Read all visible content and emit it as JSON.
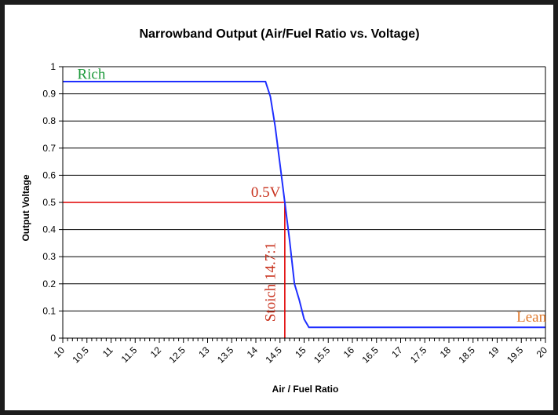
{
  "chart_data": {
    "type": "line",
    "title": "Narrowband Output (Air/Fuel Ratio vs. Voltage)",
    "xlabel": "Air / Fuel Ratio",
    "ylabel": "Output Voltage",
    "xlim": [
      10,
      20
    ],
    "ylim": [
      0,
      1
    ],
    "x_ticks": [
      10,
      10.5,
      11,
      11.5,
      12,
      12.5,
      13,
      13.5,
      14,
      14.5,
      15,
      15.5,
      16,
      16.5,
      17,
      17.5,
      18,
      18.5,
      19,
      19.5,
      20
    ],
    "x_tick_labels": [
      "10",
      "10.5",
      "11",
      "11.5",
      "12",
      "12.5",
      "13",
      "13.5",
      "14",
      "14.5",
      "15",
      "15.5",
      "16",
      "16.5",
      "17",
      "17.5",
      "18",
      "18.5",
      "19",
      "19.5",
      "20"
    ],
    "y_ticks": [
      0,
      0.1,
      0.2,
      0.3,
      0.4,
      0.5,
      0.6,
      0.7,
      0.8,
      0.9,
      1
    ],
    "y_tick_labels": [
      "0",
      "0.1",
      "0.2",
      "0.3",
      "0.4",
      "0.5",
      "0.6",
      "0.7",
      "0.8",
      "0.9",
      "1"
    ],
    "grid": "horizontal",
    "series": [
      {
        "name": "Narrowband output",
        "color": "#1f2fff",
        "x": [
          10,
          14.2,
          14.3,
          14.4,
          14.5,
          14.6,
          14.7,
          14.8,
          14.9,
          15.0,
          15.1,
          15.2,
          20
        ],
        "y": [
          0.945,
          0.945,
          0.89,
          0.78,
          0.64,
          0.5,
          0.36,
          0.2,
          0.14,
          0.07,
          0.04,
          0.04,
          0.04
        ]
      }
    ],
    "reference_lines": {
      "color": "#e00000",
      "horizontal": {
        "y": 0.5,
        "x_from": 10,
        "x_to": 14.6
      },
      "vertical": {
        "x": 14.6,
        "y_from": 0,
        "y_to": 0.5
      }
    },
    "annotations": [
      {
        "text": "Rich",
        "x": 10.3,
        "y": 0.955,
        "color": "#1e9a3c"
      },
      {
        "text": "0.5V",
        "x": 13.9,
        "y": 0.52,
        "color": "#c8321e"
      },
      {
        "text": "Stoich 14.7:1",
        "x": 14.4,
        "y": 0.06,
        "color": "#c8321e",
        "rotation": -90
      },
      {
        "text": "Lean",
        "x": 19.4,
        "y": 0.06,
        "color": "#e0782a"
      }
    ]
  }
}
